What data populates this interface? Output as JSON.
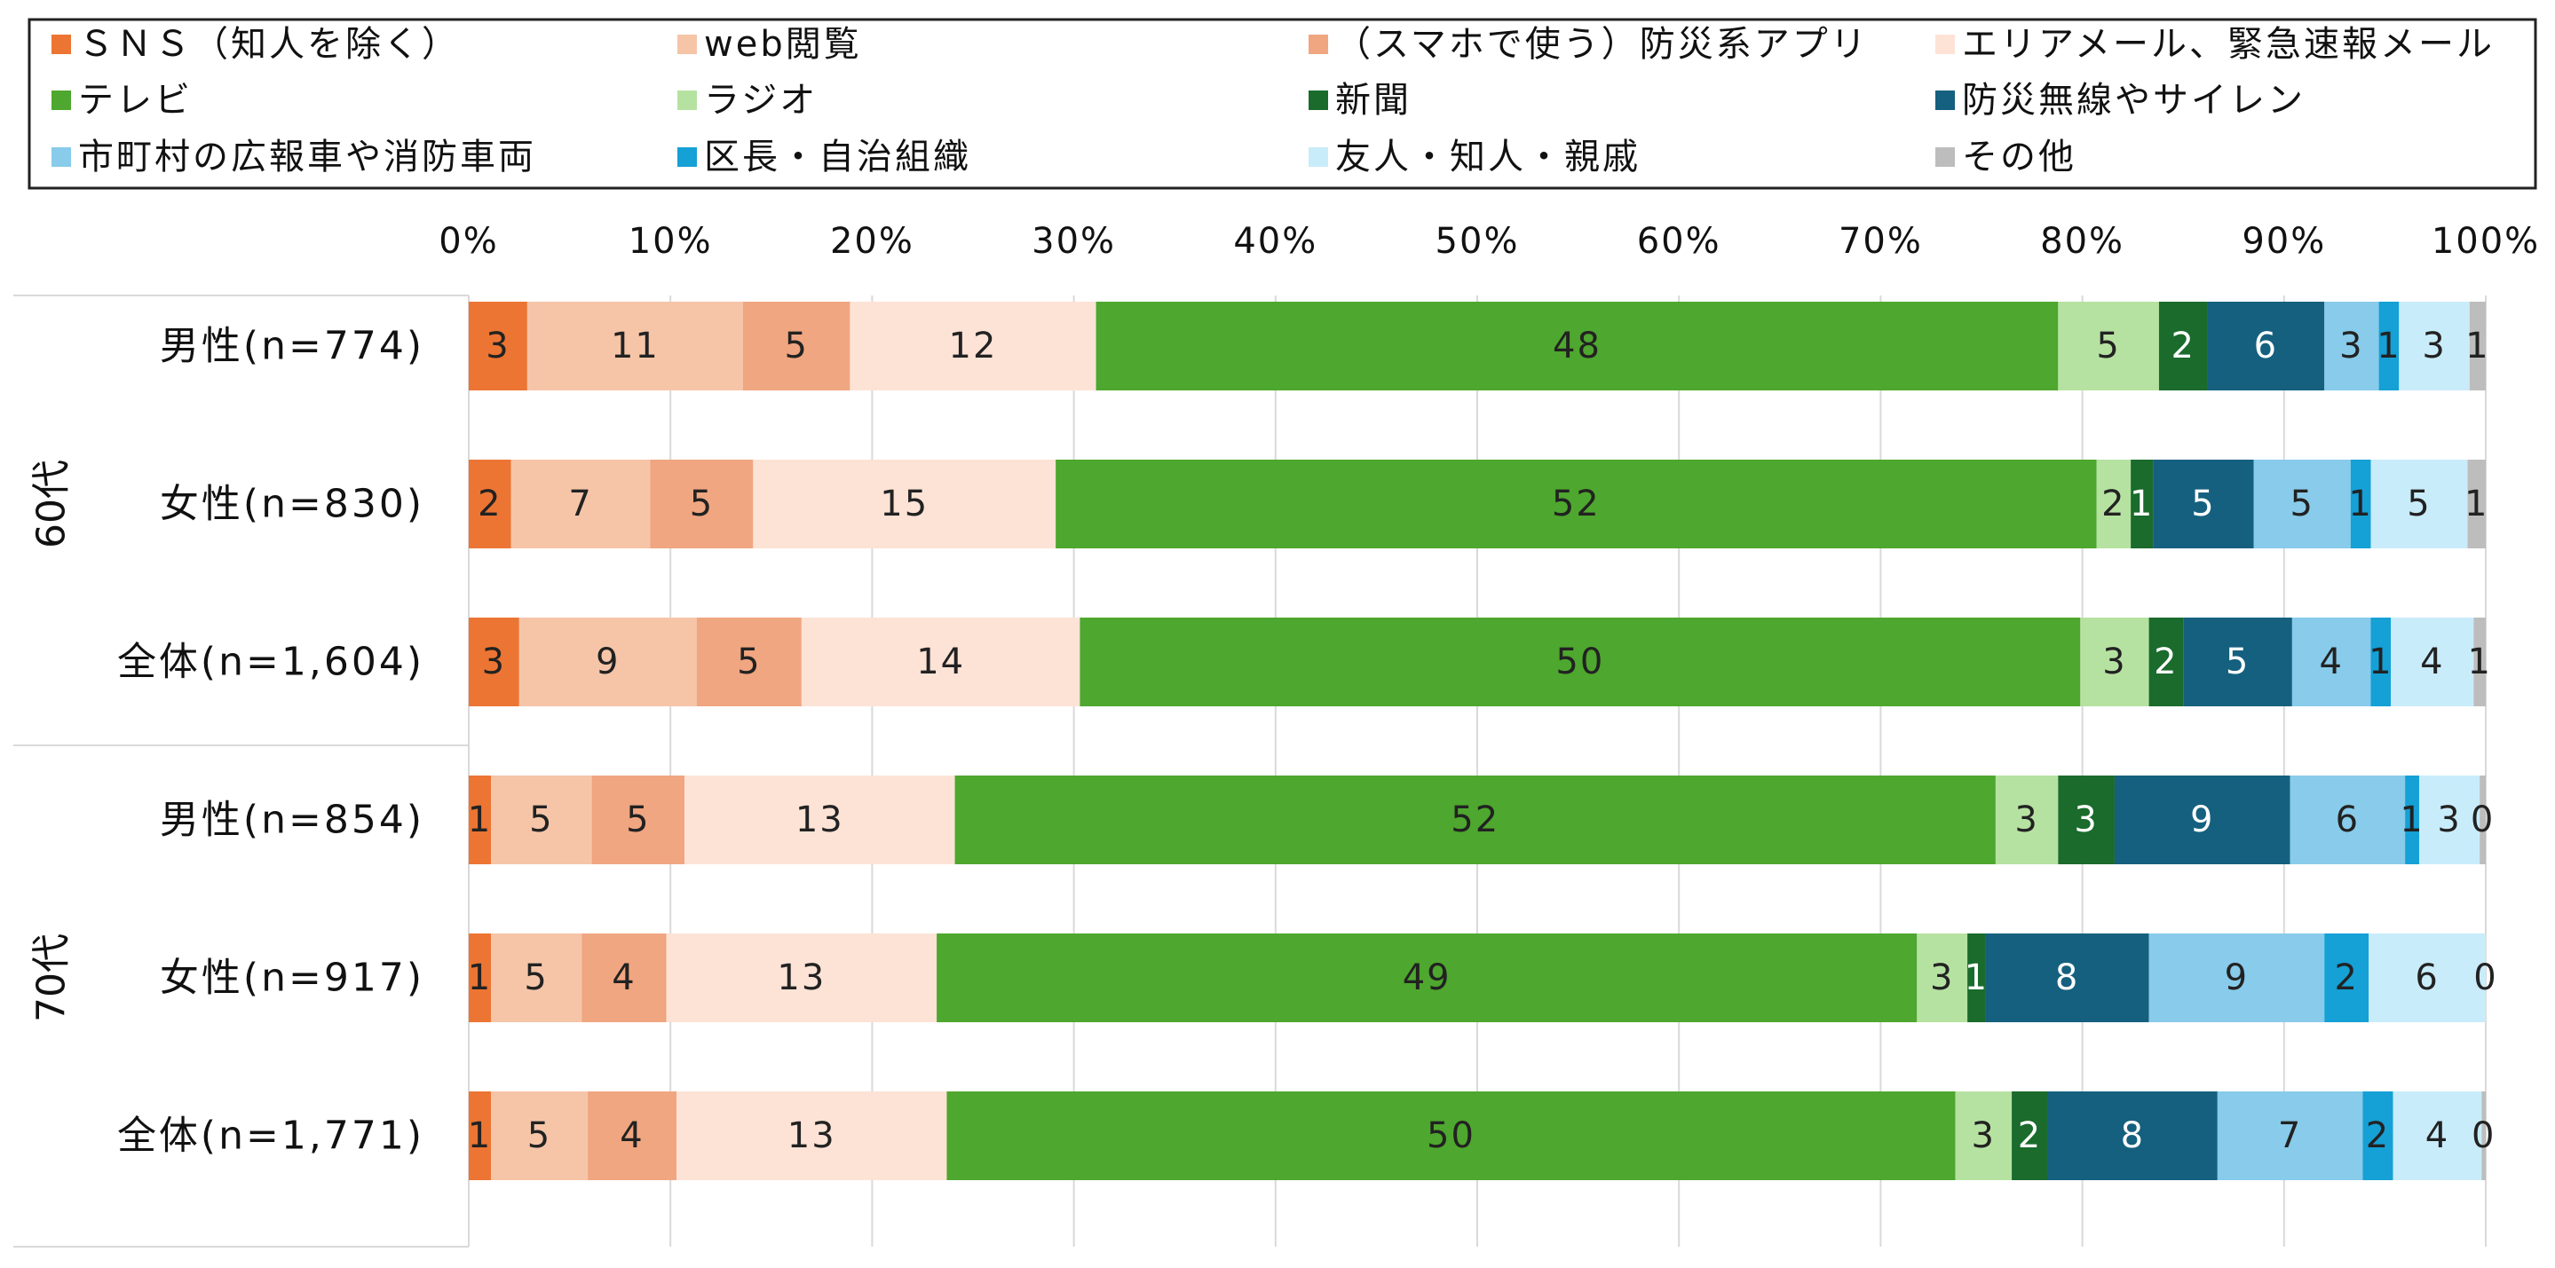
{
  "chart_data": {
    "type": "bar",
    "orientation": "horizontal",
    "stacked": true,
    "normalized_percent": true,
    "xlim": [
      0,
      100
    ],
    "x_ticks": [
      "0%",
      "10%",
      "20%",
      "30%",
      "40%",
      "50%",
      "60%",
      "70%",
      "80%",
      "90%",
      "100%"
    ],
    "grid": true,
    "legend_placement": "top",
    "groups": [
      {
        "label": "60代",
        "categories": [
          "男性(n=774)",
          "女性(n=830)",
          "全体(n=1,604)"
        ]
      },
      {
        "label": "70代",
        "categories": [
          "男性(n=854)",
          "女性(n=917)",
          "全体(n=1,771)"
        ]
      }
    ],
    "categories": [
      "男性(n=774)",
      "女性(n=830)",
      "全体(n=1,604)",
      "男性(n=854)",
      "女性(n=917)",
      "全体(n=1,771)"
    ],
    "series": [
      {
        "name": "ＳＮＳ（知人を除く）",
        "color": "#ec7533",
        "label_color": "#222222",
        "values": [
          2.9,
          2.1,
          2.5,
          1.1,
          1.1,
          1.1
        ],
        "labels": [
          "3",
          "2",
          "3",
          "1",
          "1",
          "1"
        ]
      },
      {
        "name": "web閲覧",
        "color": "#f6c5a8",
        "label_color": "#222222",
        "values": [
          10.7,
          6.9,
          8.8,
          5.0,
          4.5,
          4.8
        ],
        "labels": [
          "11",
          "7",
          "9",
          "5",
          "5",
          "5"
        ]
      },
      {
        "name": "（スマホで使う）防災系アプリ",
        "color": "#f0a680",
        "label_color": "#222222",
        "values": [
          5.3,
          5.1,
          5.2,
          4.6,
          4.2,
          4.4
        ],
        "labels": [
          "5",
          "5",
          "5",
          "5",
          "4",
          "4"
        ]
      },
      {
        "name": "エリアメール、緊急速報メール",
        "color": "#fde3d6",
        "label_color": "#222222",
        "values": [
          12.2,
          15.0,
          13.8,
          13.4,
          13.4,
          13.4
        ],
        "labels": [
          "12",
          "15",
          "14",
          "13",
          "13",
          "13"
        ]
      },
      {
        "name": "テレビ",
        "color": "#4ea72e",
        "label_color": "#222222",
        "values": [
          47.7,
          51.6,
          49.6,
          51.6,
          48.6,
          50.0
        ],
        "labels": [
          "48",
          "52",
          "50",
          "52",
          "49",
          "50"
        ]
      },
      {
        "name": "ラジオ",
        "color": "#b6e2a1",
        "label_color": "#222222",
        "values": [
          5.0,
          1.7,
          3.4,
          3.1,
          2.5,
          2.8
        ],
        "labels": [
          "5",
          "2",
          "3",
          "3",
          "3",
          "3"
        ]
      },
      {
        "name": "新聞",
        "color": "#1a6b2c",
        "label_color": "#ffffff",
        "values": [
          2.4,
          1.1,
          1.7,
          2.8,
          0.9,
          1.8
        ],
        "labels": [
          "2",
          "1",
          "2",
          "3",
          "1",
          "2"
        ]
      },
      {
        "name": "防災無線やサイレン",
        "color": "#15607f",
        "label_color": "#ffffff",
        "values": [
          5.8,
          5.0,
          5.4,
          8.7,
          8.1,
          8.4
        ],
        "labels": [
          "6",
          "5",
          "5",
          "9",
          "8",
          "8"
        ]
      },
      {
        "name": "市町村の広報車や消防車両",
        "color": "#88cbea",
        "label_color": "#222222",
        "values": [
          2.7,
          4.8,
          3.9,
          5.7,
          8.7,
          7.2
        ],
        "labels": [
          "3",
          "5",
          "4",
          "6",
          "9",
          "7"
        ]
      },
      {
        "name": "区長・自治組織",
        "color": "#15a0d6",
        "label_color": "#222222",
        "values": [
          1.0,
          1.0,
          1.0,
          0.7,
          2.2,
          1.5
        ],
        "labels": [
          "1",
          "1",
          "1",
          "1",
          "2",
          "2"
        ]
      },
      {
        "name": "友人・知人・親戚",
        "color": "#c9ecfa",
        "label_color": "#222222",
        "values": [
          3.5,
          4.8,
          4.1,
          3.0,
          5.8,
          4.4
        ],
        "labels": [
          "3",
          "5",
          "4",
          "3",
          "6",
          "4"
        ]
      },
      {
        "name": "その他",
        "color": "#bdbdbd",
        "label_color": "#222222",
        "values": [
          0.8,
          0.9,
          0.6,
          0.3,
          0.0,
          0.2
        ],
        "labels": [
          "1",
          "1",
          "1",
          "0",
          "0",
          "0"
        ]
      }
    ]
  }
}
